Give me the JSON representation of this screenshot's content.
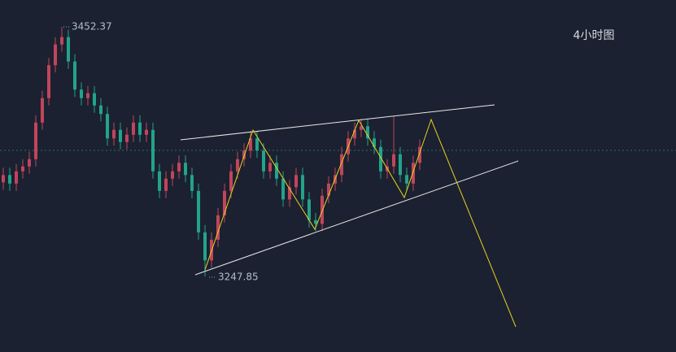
{
  "chart_data": {
    "type": "candlestick",
    "title": "4小时图",
    "up_color": "#c0455c",
    "down_color": "#22a38a",
    "ylim": [
      3186,
      3474.4
    ],
    "open": [
      3325,
      3331,
      3324,
      3334,
      3338,
      3344,
      3374,
      3394,
      3421,
      3438,
      3444,
      3424,
      3401,
      3394,
      3398,
      3388,
      3381,
      3361,
      3368,
      3358,
      3364,
      3374,
      3364,
      3368,
      3334,
      3318,
      3328,
      3334,
      3341,
      3331,
      3318,
      3284,
      3261,
      3278,
      3298,
      3318,
      3334,
      3344,
      3351,
      3361,
      3351,
      3334,
      3341,
      3328,
      3311,
      3321,
      3331,
      3311,
      3294,
      3291,
      3314,
      3324,
      3331,
      3348,
      3361,
      3368,
      3371,
      3361,
      3354,
      3334,
      3338,
      3348,
      3331,
      3324,
      3341
    ],
    "high": [
      3337,
      3337,
      3340,
      3344,
      3350,
      3380,
      3400,
      3427,
      3444,
      3452.37,
      3450,
      3430,
      3407,
      3404,
      3404,
      3394,
      3387,
      3374,
      3374,
      3370,
      3380,
      3380,
      3374,
      3374,
      3340,
      3334,
      3340,
      3347,
      3347,
      3337,
      3324,
      3290,
      3284,
      3304,
      3324,
      3340,
      3350,
      3357,
      3367,
      3367,
      3357,
      3347,
      3347,
      3334,
      3327,
      3337,
      3337,
      3317,
      3300,
      3320,
      3330,
      3337,
      3354,
      3367,
      3374,
      3377,
      3377,
      3367,
      3360,
      3344,
      3379,
      3354,
      3337,
      3347,
      3360
    ],
    "low": [
      3319,
      3318,
      3318,
      3328,
      3332,
      3338,
      3368,
      3388,
      3415,
      3432,
      3418,
      3395,
      3388,
      3388,
      3382,
      3375,
      3355,
      3355,
      3352,
      3352,
      3358,
      3358,
      3358,
      3328,
      3312,
      3312,
      3322,
      3328,
      3325,
      3312,
      3278,
      3247.85,
      3255,
      3272,
      3292,
      3312,
      3328,
      3338,
      3345,
      3345,
      3328,
      3328,
      3322,
      3305,
      3305,
      3315,
      3305,
      3288,
      3285,
      3285,
      3308,
      3318,
      3325,
      3342,
      3355,
      3362,
      3355,
      3348,
      3328,
      3328,
      3332,
      3325,
      3318,
      3318,
      3335
    ],
    "close": [
      3331,
      3324,
      3334,
      3338,
      3344,
      3374,
      3394,
      3421,
      3438,
      3444,
      3424,
      3401,
      3394,
      3398,
      3388,
      3381,
      3361,
      3368,
      3358,
      3364,
      3374,
      3364,
      3368,
      3334,
      3318,
      3328,
      3334,
      3341,
      3331,
      3318,
      3284,
      3261,
      3278,
      3298,
      3318,
      3334,
      3344,
      3351,
      3361,
      3351,
      3334,
      3341,
      3328,
      3311,
      3321,
      3331,
      3311,
      3294,
      3291,
      3314,
      3324,
      3331,
      3348,
      3361,
      3368,
      3371,
      3361,
      3354,
      3334,
      3338,
      3348,
      3331,
      3324,
      3341,
      3354
    ]
  }
}
